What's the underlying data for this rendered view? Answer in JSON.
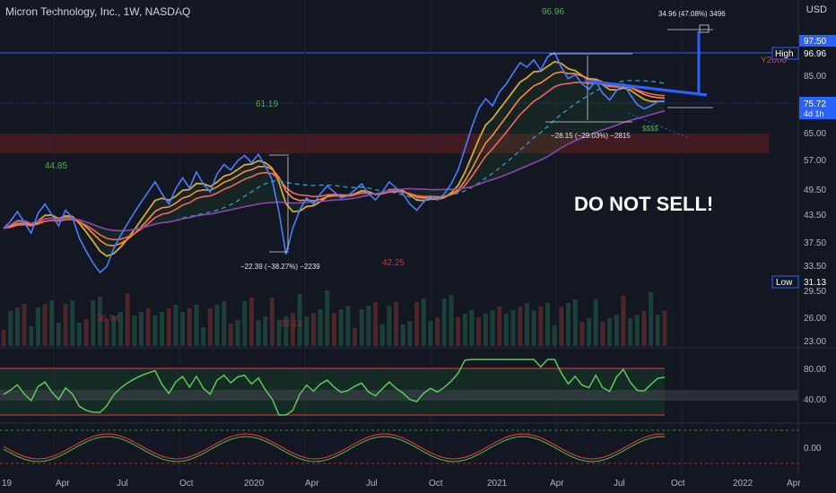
{
  "header": {
    "title": "Micron Technology, Inc., 1W, NASDAQ",
    "currency": "USD"
  },
  "colors": {
    "background": "#131722",
    "price_line": "#4c7cff",
    "ema_fast": "#ff8a3d",
    "ema_mid": "#d4a93a",
    "ema_slow": "#f0675c",
    "ma_dashed": "#2aa0c8",
    "ma_long": "#8e44ad",
    "rsi": "#5cc95c",
    "rsi_down": "#e0474c",
    "accent_blue": "#2962ff",
    "zone_red": "#5a1f26"
  },
  "chart_data": {
    "type": "line",
    "x_ticks": [
      "19",
      "Apr",
      "Jul",
      "Oct",
      "2020",
      "Apr",
      "Jul",
      "Oct",
      "2021",
      "Apr",
      "Jul",
      "Oct",
      "2022",
      "Apr"
    ],
    "y_ticks": [
      "97.50",
      "96.96",
      "85.00",
      "75.72",
      "65.00",
      "57.00",
      "49.50",
      "43.50",
      "37.50",
      "33.50",
      "31.13",
      "29.50",
      "26.00",
      "23.00"
    ],
    "osc1_ticks": [
      "80.00",
      "40.00"
    ],
    "osc2_ticks": [
      "0.00"
    ],
    "series": [
      {
        "values": [
          40.5,
          42.0,
          44.2,
          41.8,
          39.5,
          43.8,
          46.0,
          43.5,
          41.0,
          44.5,
          42.8,
          38.5,
          36.0,
          34.0,
          32.5,
          33.5,
          36.5,
          39.0,
          41.5,
          44.0,
          46.5,
          49.0,
          51.5,
          48.5,
          46.0,
          49.8,
          52.5,
          50.0,
          54.0,
          51.0,
          49.0,
          53.5,
          56.0,
          54.5,
          57.0,
          58.5,
          56.5,
          58.8,
          55.5,
          52.0,
          44.0,
          35.5,
          40.5,
          44.5,
          47.5,
          46.0,
          48.5,
          50.5,
          49.0,
          47.5,
          48.0,
          49.5,
          51.0,
          48.5,
          47.0,
          49.0,
          51.5,
          50.0,
          48.5,
          46.0,
          44.5,
          46.5,
          48.0,
          47.0,
          48.5,
          51.0,
          54.5,
          60.5,
          67.0,
          73.0,
          76.5,
          74.0,
          79.0,
          82.0,
          86.0,
          89.5,
          88.0,
          90.5,
          87.0,
          91.5,
          93.0,
          88.0,
          84.0,
          85.5,
          82.0,
          80.0,
          83.0,
          78.5,
          76.0,
          79.5,
          82.0,
          78.0,
          74.5,
          73.0,
          74.0,
          75.5,
          75.7
        ]
      }
    ],
    "levels": [
      {
        "label": "96.96",
        "value": 96.96,
        "tag": "High"
      },
      {
        "label": "31.13",
        "value": 31.13,
        "tag": "Low"
      },
      {
        "label": "75.72",
        "value": 75.72,
        "tag": "4d 1h"
      },
      {
        "label": "97.50",
        "value": 97.5,
        "tag": ""
      }
    ],
    "annotations": {
      "top_peak": "96.96",
      "left_low": "44.85",
      "mid_level": "61.19",
      "mid_low": "42.25",
      "drop1": "−22.39 (−38.27%) −2239",
      "drop2": "−28.15 (−29.03%) −2815",
      "rise": "34.96 (47.08%) 3496",
      "target_marker": "$$$$",
      "clipped_label": "Y2000",
      "vol_label_1": "36.94",
      "vol_label_2": "33.13"
    },
    "callout": "DO NOT SELL!"
  }
}
